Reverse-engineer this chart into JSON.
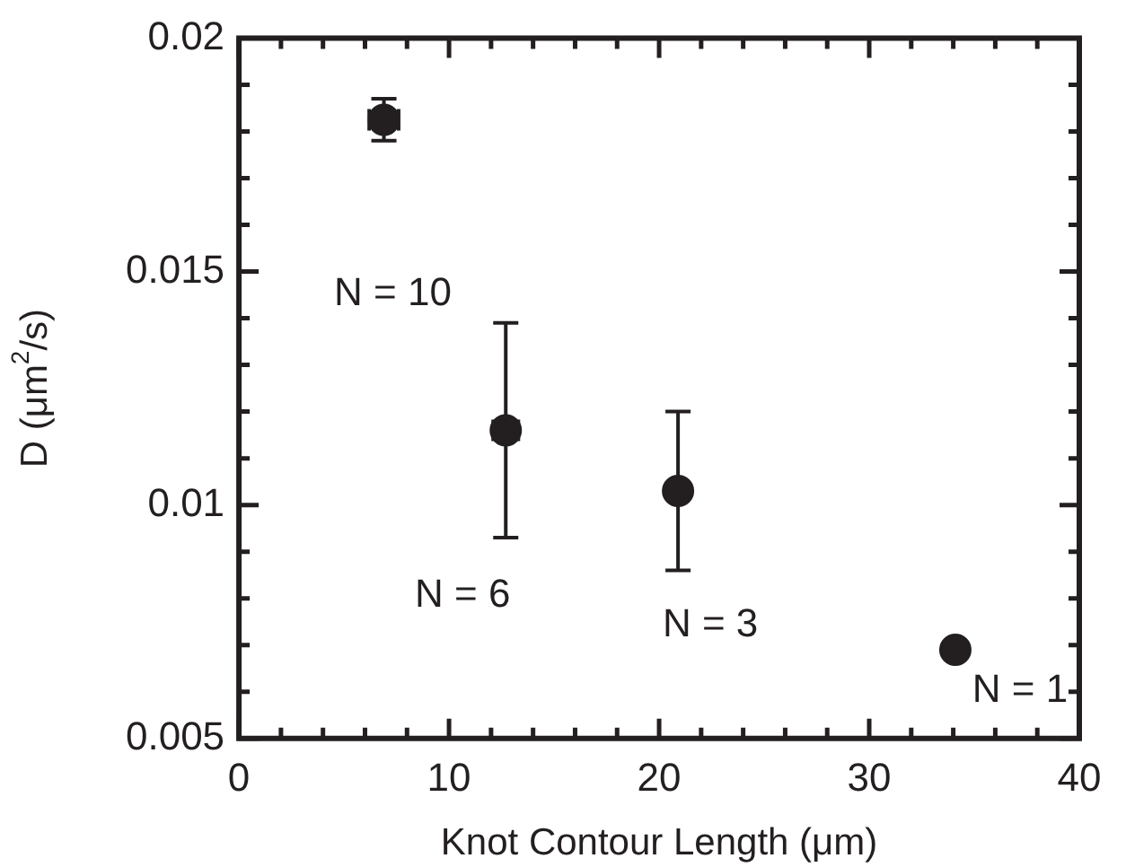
{
  "chart_data": {
    "type": "scatter",
    "xlabel": "Knot Contour Length (μm)",
    "ylabel": "D (μm$^{2}$/s)",
    "x": [
      6.9,
      12.7,
      20.9,
      34.1
    ],
    "series": [
      {
        "color": "#231f20",
        "values": [
          0.01825,
          0.0116,
          0.0103,
          0.0069
        ],
        "errors": [
          [
            0.0178,
            0.0187
          ],
          [
            0.0093,
            0.0139
          ],
          [
            0.0086,
            0.012
          ],
          null
        ],
        "xerrors": [
          [
            6.2,
            7.6
          ],
          [
            12.1,
            13.3
          ],
          null,
          null
        ]
      }
    ],
    "marker": "circle",
    "xlim": [
      0,
      40
    ],
    "xticks": [
      0,
      {
        "value": 2,
        "label": null
      },
      {
        "value": 4,
        "label": null
      },
      {
        "value": 6,
        "label": null
      },
      {
        "value": 8,
        "label": null
      },
      10,
      {
        "value": 12,
        "label": null
      },
      {
        "value": 14,
        "label": null
      },
      {
        "value": 16,
        "label": null
      },
      {
        "value": 18,
        "label": null
      },
      20,
      {
        "value": 22,
        "label": null
      },
      {
        "value": 24,
        "label": null
      },
      {
        "value": 26,
        "label": null
      },
      {
        "value": 28,
        "label": null
      },
      30,
      {
        "value": 32,
        "label": null
      },
      {
        "value": 34,
        "label": null
      },
      {
        "value": 36,
        "label": null
      },
      {
        "value": 38,
        "label": null
      },
      40
    ],
    "ylim": [
      0.005,
      0.02
    ],
    "yticks": [
      0.005,
      {
        "value": 0.006,
        "label": null
      },
      {
        "value": 0.007,
        "label": null
      },
      {
        "value": 0.008,
        "label": null
      },
      {
        "value": 0.009,
        "label": null
      },
      0.01,
      {
        "value": 0.011,
        "label": null
      },
      {
        "value": 0.012,
        "label": null
      },
      {
        "value": 0.013,
        "label": null
      },
      {
        "value": 0.014,
        "label": null
      },
      0.015,
      {
        "value": 0.016,
        "label": null
      },
      {
        "value": 0.017,
        "label": null
      },
      {
        "value": 0.018,
        "label": null
      },
      {
        "value": 0.019,
        "label": null
      },
      0.02
    ],
    "grid": false,
    "legend": false,
    "annotations": [
      "N = 10",
      "N = 6",
      "N = 3",
      "N = 1"
    ]
  }
}
